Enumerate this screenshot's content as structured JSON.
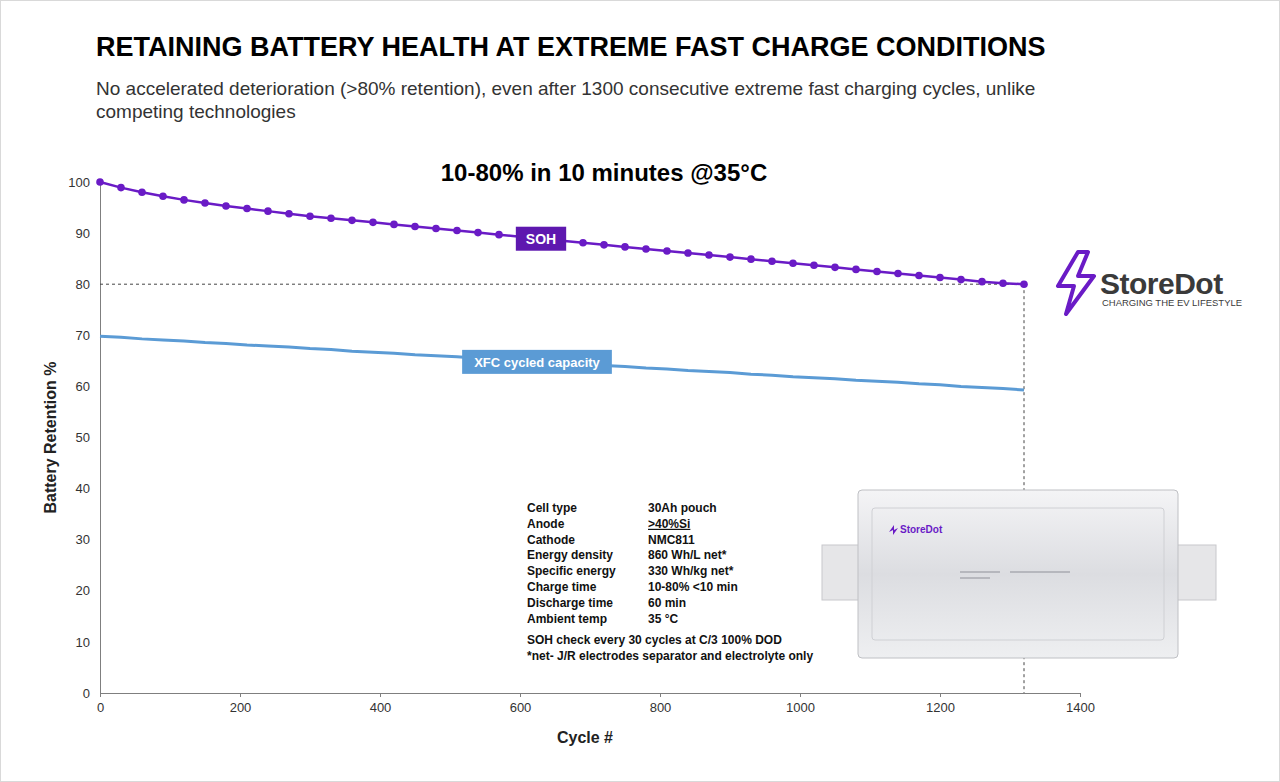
{
  "chart_data": {
    "type": "line",
    "title": "RETAINING BATTERY HEALTH AT EXTREME FAST CHARGE CONDITIONS",
    "subtitle": "No accelerated deterioration (>80% retention), even after 1300 consecutive extreme fast charging cycles, unlike competing technologies",
    "chart_title": "10-80% in 10 minutes @35°C",
    "x_label": "Cycle #",
    "y_label": "Battery Retention %",
    "x": [
      0,
      30,
      60,
      90,
      120,
      150,
      180,
      210,
      240,
      270,
      300,
      330,
      360,
      390,
      420,
      450,
      480,
      510,
      540,
      570,
      600,
      630,
      660,
      690,
      720,
      750,
      780,
      810,
      840,
      870,
      900,
      930,
      960,
      990,
      1020,
      1050,
      1080,
      1110,
      1140,
      1170,
      1200,
      1230,
      1260,
      1290,
      1320
    ],
    "series": [
      {
        "name": "SOH",
        "color": "#6a1bc6",
        "marker": "circle",
        "line_style": "solid",
        "values": [
          100,
          98.9,
          98.0,
          97.2,
          96.5,
          95.9,
          95.3,
          94.8,
          94.3,
          93.8,
          93.3,
          92.9,
          92.5,
          92.1,
          91.7,
          91.3,
          90.9,
          90.5,
          90.1,
          89.7,
          89.3,
          88.9,
          88.5,
          88.1,
          87.7,
          87.3,
          86.9,
          86.5,
          86.1,
          85.7,
          85.3,
          84.9,
          84.5,
          84.1,
          83.7,
          83.3,
          82.9,
          82.5,
          82.1,
          81.7,
          81.3,
          80.9,
          80.5,
          80.2,
          80.0
        ]
      },
      {
        "name": "XFC cycled capacity",
        "color": "#5b9bd5",
        "marker": "none",
        "line_style": "solid",
        "values": [
          69.8,
          69.6,
          69.3,
          69.1,
          68.9,
          68.6,
          68.4,
          68.1,
          67.9,
          67.7,
          67.4,
          67.2,
          66.9,
          66.7,
          66.5,
          66.2,
          66.0,
          65.8,
          65.5,
          65.3,
          65.0,
          64.8,
          64.6,
          64.3,
          64.1,
          63.9,
          63.6,
          63.4,
          63.1,
          62.9,
          62.7,
          62.4,
          62.2,
          61.9,
          61.7,
          61.5,
          61.2,
          61.0,
          60.8,
          60.5,
          60.3,
          60.0,
          59.8,
          59.6,
          59.3
        ]
      }
    ],
    "xlim": [
      0,
      1400
    ],
    "ylim": [
      0,
      100
    ],
    "xticks": [
      0,
      200,
      400,
      600,
      800,
      1000,
      1200,
      1400
    ],
    "yticks": [
      0,
      10,
      20,
      30,
      40,
      50,
      60,
      70,
      80,
      90,
      100
    ],
    "grid": false,
    "specs": [
      {
        "label": "Cell type",
        "value": "30Ah pouch"
      },
      {
        "label": "Anode",
        "value": ">40%Si"
      },
      {
        "label": "Cathode",
        "value": "NMC811"
      },
      {
        "label": "Energy density",
        "value": "860 Wh/L net*"
      },
      {
        "label": "Specific energy",
        "value": "330 Wh/kg net*"
      },
      {
        "label": "Charge time",
        "value": "10-80% <10 min"
      },
      {
        "label": "Discharge time",
        "value": "60 min"
      },
      {
        "label": "Ambient temp",
        "value": "35 °C"
      }
    ],
    "notes": [
      "SOH  check every 30 cycles at C/3 100% DOD",
      "*net- J/R electrodes separator and electrolyte only"
    ],
    "logo": {
      "name": "StoreDot",
      "tagline": "CHARGING THE EV LIFESTYLE"
    },
    "cell_label": "StoreDot"
  }
}
